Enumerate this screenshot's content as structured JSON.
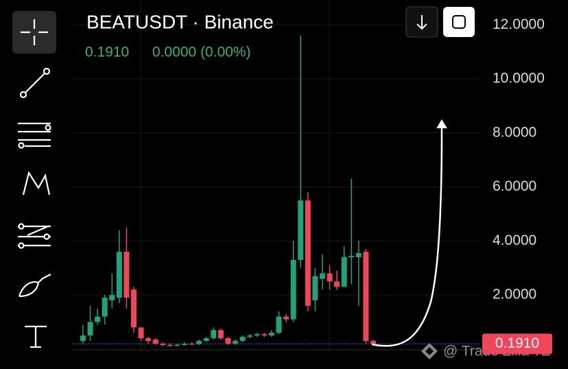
{
  "chart_data": {
    "type": "candlestick",
    "title": "BEATUSDT · Binance",
    "change": "0.0000 (0.00%)",
    "price_line": {
      "value": 0.191,
      "label": "0.1910"
    },
    "watermark": "@ Trade Zilla TZ",
    "up_color": "#22a27a",
    "down_color": "#f0455a",
    "ylim": [
      -0.08,
      12.92
    ],
    "yticks": [
      {
        "value": 2,
        "label": "2.0000"
      },
      {
        "value": 4,
        "label": "4.0000"
      },
      {
        "value": 6,
        "label": "6.0000"
      },
      {
        "value": 8,
        "label": "8.0000"
      },
      {
        "value": 10,
        "label": "10.0000"
      },
      {
        "value": 12,
        "label": "12.0000"
      }
    ],
    "grid": true,
    "open": [
      0.3,
      0.5,
      1.0,
      1.2,
      1.8,
      1.9,
      3.6,
      2.2,
      0.8,
      0.4,
      0.35,
      0.2,
      0.15,
      0.12,
      0.15,
      0.2,
      0.18,
      0.3,
      0.4,
      0.7,
      0.4,
      0.2,
      0.3,
      0.45,
      0.5,
      0.55,
      0.5,
      0.6,
      1.2,
      1.1,
      3.3,
      5.5,
      1.8,
      2.6,
      2.8,
      2.5,
      2.3,
      3.4,
      3.4,
      3.6,
      0.3
    ],
    "high": [
      0.9,
      1.6,
      1.5,
      2.0,
      2.8,
      4.4,
      4.5,
      2.3,
      0.8,
      0.45,
      0.4,
      0.25,
      0.2,
      0.2,
      0.25,
      0.25,
      0.35,
      0.45,
      0.8,
      0.75,
      0.45,
      0.35,
      0.5,
      0.55,
      0.6,
      0.6,
      0.7,
      1.4,
      1.3,
      4.0,
      11.6,
      5.8,
      3.0,
      3.5,
      3.1,
      2.9,
      3.8,
      6.3,
      4.0,
      3.7,
      0.35
    ],
    "low": [
      0.2,
      0.3,
      0.9,
      0.9,
      1.5,
      1.7,
      1.5,
      0.6,
      0.3,
      0.2,
      0.15,
      0.1,
      0.1,
      0.1,
      0.12,
      0.15,
      0.15,
      0.25,
      0.35,
      0.35,
      0.15,
      0.15,
      0.25,
      0.4,
      0.45,
      0.45,
      0.45,
      0.55,
      1.0,
      1.0,
      3.0,
      1.4,
      1.4,
      2.2,
      2.2,
      2.2,
      2.3,
      2.4,
      1.6,
      0.2,
      0.15
    ],
    "close": [
      0.5,
      1.0,
      1.2,
      1.9,
      2.0,
      3.6,
      1.9,
      0.8,
      0.4,
      0.3,
      0.2,
      0.15,
      0.12,
      0.16,
      0.2,
      0.17,
      0.3,
      0.4,
      0.7,
      0.4,
      0.2,
      0.3,
      0.45,
      0.5,
      0.55,
      0.5,
      0.6,
      1.2,
      1.1,
      3.3,
      5.5,
      1.6,
      2.7,
      2.8,
      2.5,
      2.3,
      3.4,
      3.45,
      3.55,
      0.3,
      0.19
    ]
  }
}
